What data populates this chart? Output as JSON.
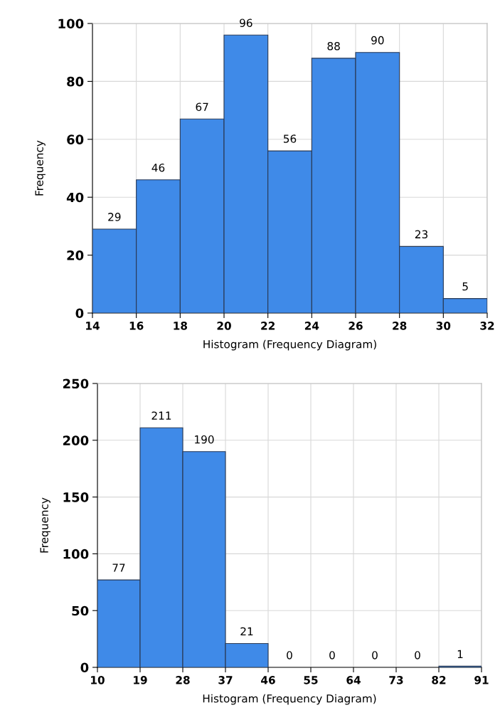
{
  "chart_data": [
    {
      "type": "histogram",
      "xlabel": "Histogram (Frequency Diagram)",
      "ylabel": "Frequency",
      "bins": [
        14,
        16,
        18,
        20,
        22,
        24,
        26,
        28,
        30,
        32
      ],
      "values": [
        29,
        46,
        67,
        96,
        56,
        88,
        90,
        23,
        5
      ],
      "color": "#3f8ae8",
      "data_labels": true,
      "xlim": [
        14,
        32
      ],
      "xticks": [
        14,
        16,
        18,
        20,
        22,
        24,
        26,
        28,
        30,
        32
      ],
      "ylim": [
        0,
        100
      ],
      "yticks": [
        0,
        20,
        40,
        60,
        80,
        100
      ],
      "grid": true
    },
    {
      "type": "histogram",
      "xlabel": "Histogram (Frequency Diagram)",
      "ylabel": "Frequency",
      "bins": [
        10,
        19,
        28,
        37,
        46,
        55,
        64,
        73,
        82,
        91
      ],
      "values": [
        77,
        211,
        190,
        21,
        0,
        0,
        0,
        0,
        1
      ],
      "color": "#3f8ae8",
      "data_labels": true,
      "xlim": [
        10,
        91
      ],
      "xticks": [
        10,
        19,
        28,
        37,
        46,
        55,
        64,
        73,
        82,
        91
      ],
      "ylim": [
        0,
        250
      ],
      "yticks": [
        0,
        50,
        100,
        150,
        200,
        250
      ],
      "grid": true
    }
  ]
}
